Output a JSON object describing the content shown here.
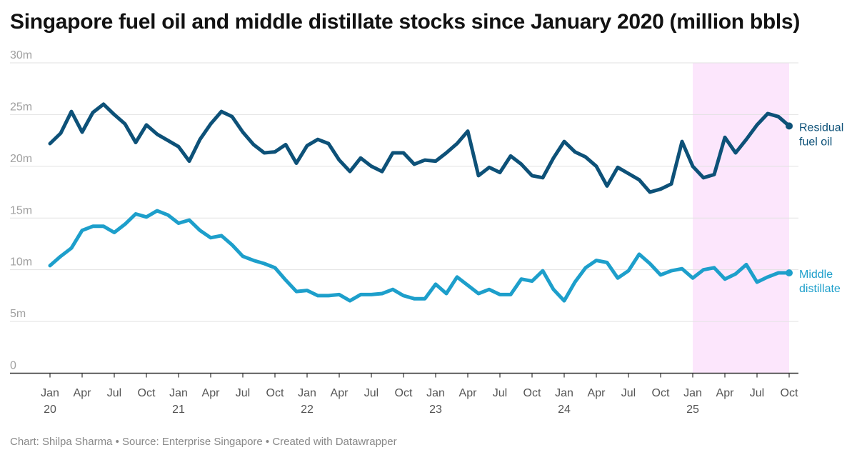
{
  "header": {
    "title": "Singapore fuel oil and middle distillate stocks since January 2020 (million bbls)"
  },
  "footer": {
    "credit": "Chart: Shilpa Sharma • Source: Enterprise Singapore • Created with Datawrapper"
  },
  "chart_data": {
    "type": "line",
    "title": "Singapore fuel oil and middle distillate stocks since January 2020 (million bbls)",
    "xlabel": "",
    "ylabel": "",
    "ylim": [
      0,
      30
    ],
    "yticks": [
      0,
      5,
      10,
      15,
      20,
      25,
      30
    ],
    "ytick_labels": [
      "0",
      "5m",
      "10m",
      "15m",
      "20m",
      "25m",
      "30m"
    ],
    "grid": true,
    "x_start": "2020-01",
    "x_end": "2025-10",
    "x_frequency": "monthly",
    "xtick_labels": [
      {
        "month_index": 0,
        "line1": "Jan",
        "line2": "20"
      },
      {
        "month_index": 3,
        "line1": "Apr",
        "line2": ""
      },
      {
        "month_index": 6,
        "line1": "Jul",
        "line2": ""
      },
      {
        "month_index": 9,
        "line1": "Oct",
        "line2": ""
      },
      {
        "month_index": 12,
        "line1": "Jan",
        "line2": "21"
      },
      {
        "month_index": 15,
        "line1": "Apr",
        "line2": ""
      },
      {
        "month_index": 18,
        "line1": "Jul",
        "line2": ""
      },
      {
        "month_index": 21,
        "line1": "Oct",
        "line2": ""
      },
      {
        "month_index": 24,
        "line1": "Jan",
        "line2": "22"
      },
      {
        "month_index": 27,
        "line1": "Apr",
        "line2": ""
      },
      {
        "month_index": 30,
        "line1": "Jul",
        "line2": ""
      },
      {
        "month_index": 33,
        "line1": "Oct",
        "line2": ""
      },
      {
        "month_index": 36,
        "line1": "Jan",
        "line2": "23"
      },
      {
        "month_index": 39,
        "line1": "Apr",
        "line2": ""
      },
      {
        "month_index": 42,
        "line1": "Jul",
        "line2": ""
      },
      {
        "month_index": 45,
        "line1": "Oct",
        "line2": ""
      },
      {
        "month_index": 48,
        "line1": "Jan",
        "line2": "24"
      },
      {
        "month_index": 51,
        "line1": "Apr",
        "line2": ""
      },
      {
        "month_index": 54,
        "line1": "Jul",
        "line2": ""
      },
      {
        "month_index": 57,
        "line1": "Oct",
        "line2": ""
      },
      {
        "month_index": 60,
        "line1": "Jan",
        "line2": "25"
      },
      {
        "month_index": 63,
        "line1": "Apr",
        "line2": ""
      },
      {
        "month_index": 66,
        "line1": "Jul",
        "line2": ""
      },
      {
        "month_index": 69,
        "line1": "Oct",
        "line2": ""
      }
    ],
    "highlight_range": {
      "from_month_index": 60,
      "to_month_index": 69,
      "color": "#fce6fc"
    },
    "series": [
      {
        "name": "Residual fuel oil",
        "label_lines": [
          "Residual",
          "fuel oil"
        ],
        "color": "#0d5178",
        "values": [
          22.2,
          23.2,
          25.3,
          23.3,
          25.2,
          26.0,
          25.0,
          24.1,
          22.3,
          24.0,
          23.1,
          22.5,
          21.9,
          20.5,
          22.6,
          24.1,
          25.3,
          24.8,
          23.3,
          22.1,
          21.3,
          21.4,
          22.1,
          20.3,
          22.0,
          22.6,
          22.2,
          20.6,
          19.5,
          20.8,
          20.0,
          19.5,
          21.3,
          21.3,
          20.2,
          20.6,
          20.5,
          21.3,
          22.2,
          23.4,
          19.1,
          19.9,
          19.4,
          21.0,
          20.2,
          19.1,
          18.9,
          20.8,
          22.4,
          21.4,
          20.9,
          20.0,
          18.1,
          19.9,
          19.3,
          18.7,
          17.5,
          17.8,
          18.3,
          22.4,
          20.0,
          18.9,
          19.2,
          22.8,
          21.3,
          22.6,
          24.0,
          25.1,
          24.8,
          23.9
        ]
      },
      {
        "name": "Middle distillate",
        "label_lines": [
          "Middle",
          "distillate"
        ],
        "color": "#1d9fcb",
        "values": [
          10.4,
          11.3,
          12.1,
          13.8,
          14.2,
          14.2,
          13.6,
          14.4,
          15.4,
          15.1,
          15.7,
          15.3,
          14.5,
          14.8,
          13.8,
          13.1,
          13.3,
          12.4,
          11.3,
          10.9,
          10.6,
          10.2,
          9.0,
          7.9,
          8.0,
          7.5,
          7.5,
          7.6,
          7.0,
          7.6,
          7.6,
          7.7,
          8.1,
          7.5,
          7.2,
          7.2,
          8.6,
          7.7,
          9.3,
          8.5,
          7.7,
          8.1,
          7.6,
          7.6,
          9.1,
          8.9,
          9.9,
          8.1,
          7.0,
          8.8,
          10.2,
          10.9,
          10.7,
          9.2,
          9.9,
          11.5,
          10.6,
          9.5,
          9.9,
          10.1,
          9.2,
          10.0,
          10.2,
          9.1,
          9.6,
          10.5,
          8.8,
          9.3,
          9.7,
          9.7
        ]
      }
    ]
  }
}
